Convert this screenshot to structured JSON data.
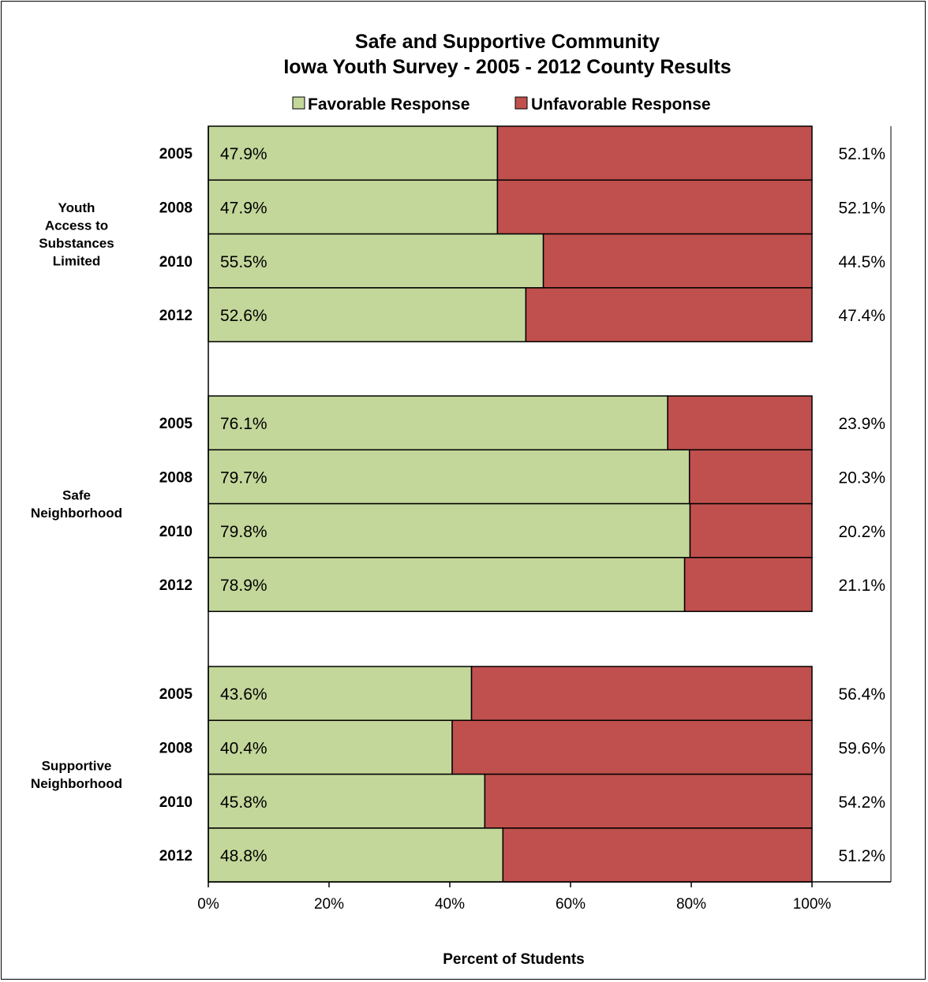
{
  "chart_data": {
    "type": "bar",
    "orientation": "horizontal",
    "stacked": "percent",
    "title": "Safe and Supportive Community",
    "subtitle": "Iowa Youth Survey - 2005 - 2012 County Results",
    "xlabel": "Percent of Students",
    "xlim": [
      0,
      100
    ],
    "x_ticks": [
      "0%",
      "20%",
      "40%",
      "60%",
      "80%",
      "100%"
    ],
    "legend_position": "top",
    "colors": {
      "favorable": "#c4d79b",
      "unfavorable": "#c0504d",
      "border": "#000000"
    },
    "series": [
      {
        "name": "Favorable Response",
        "key": "favorable"
      },
      {
        "name": "Unfavorable Response",
        "key": "unfavorable"
      }
    ],
    "groups": [
      {
        "label": [
          "Youth",
          "Access to",
          "Substances",
          "Limited"
        ],
        "rows": [
          {
            "year": "2005",
            "favorable": 47.9,
            "unfavorable": 52.1,
            "favorable_label": "47.9%",
            "unfavorable_label": "52.1%"
          },
          {
            "year": "2008",
            "favorable": 47.9,
            "unfavorable": 52.1,
            "favorable_label": "47.9%",
            "unfavorable_label": "52.1%"
          },
          {
            "year": "2010",
            "favorable": 55.5,
            "unfavorable": 44.5,
            "favorable_label": "55.5%",
            "unfavorable_label": "44.5%"
          },
          {
            "year": "2012",
            "favorable": 52.6,
            "unfavorable": 47.4,
            "favorable_label": "52.6%",
            "unfavorable_label": "47.4%"
          }
        ]
      },
      {
        "label": [
          "Safe",
          "Neighborhood"
        ],
        "rows": [
          {
            "year": "2005",
            "favorable": 76.1,
            "unfavorable": 23.9,
            "favorable_label": "76.1%",
            "unfavorable_label": "23.9%"
          },
          {
            "year": "2008",
            "favorable": 79.7,
            "unfavorable": 20.3,
            "favorable_label": "79.7%",
            "unfavorable_label": "20.3%"
          },
          {
            "year": "2010",
            "favorable": 79.8,
            "unfavorable": 20.2,
            "favorable_label": "79.8%",
            "unfavorable_label": "20.2%"
          },
          {
            "year": "2012",
            "favorable": 78.9,
            "unfavorable": 21.1,
            "favorable_label": "78.9%",
            "unfavorable_label": "21.1%"
          }
        ]
      },
      {
        "label": [
          "Supportive",
          "Neighborhood"
        ],
        "rows": [
          {
            "year": "2005",
            "favorable": 43.6,
            "unfavorable": 56.4,
            "favorable_label": "43.6%",
            "unfavorable_label": "56.4%"
          },
          {
            "year": "2008",
            "favorable": 40.4,
            "unfavorable": 59.6,
            "favorable_label": "40.4%",
            "unfavorable_label": "59.6%"
          },
          {
            "year": "2010",
            "favorable": 45.8,
            "unfavorable": 54.2,
            "favorable_label": "45.8%",
            "unfavorable_label": "54.2%"
          },
          {
            "year": "2012",
            "favorable": 48.8,
            "unfavorable": 51.2,
            "favorable_label": "48.8%",
            "unfavorable_label": "51.2%"
          }
        ]
      }
    ]
  }
}
